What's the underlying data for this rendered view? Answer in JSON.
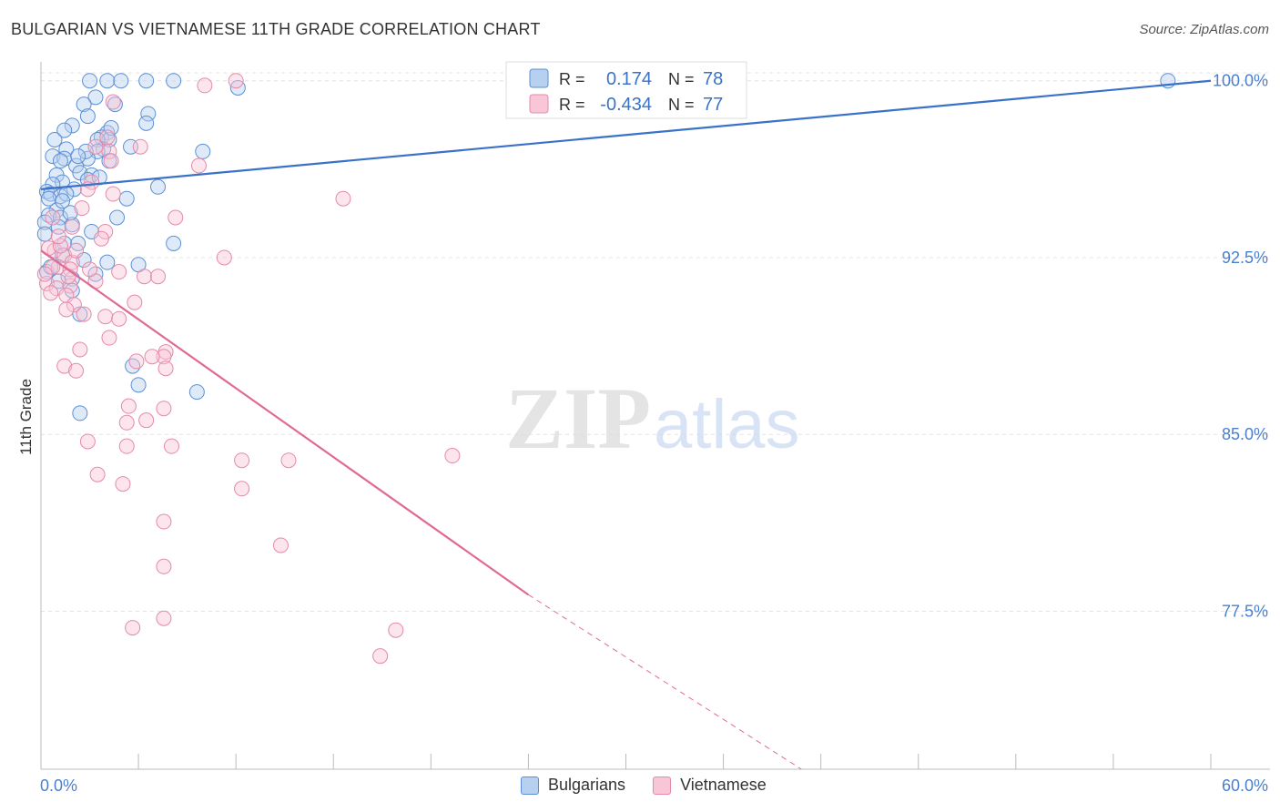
{
  "title": "BULGARIAN VS VIETNAMESE 11TH GRADE CORRELATION CHART",
  "source": "Source: ZipAtlas.com",
  "watermark": {
    "zip": "ZIP",
    "atlas": "atlas"
  },
  "colors": {
    "blue": "#3a72c9",
    "blue_fill": "#b7d0f0",
    "pink": "#e06a96",
    "pink_fill": "#f8c6d6",
    "axis_label": "#4a7fd0",
    "grid": "#e4e4e4"
  },
  "chart_data": {
    "type": "scatter",
    "ylabel": "11th Grade",
    "xlim": [
      0,
      60
    ],
    "ylim": [
      70.8,
      100.8
    ],
    "x_tick_labels": [
      "0.0%",
      "60.0%"
    ],
    "y_ticks": [
      77.5,
      85.0,
      92.5,
      100.0
    ],
    "y_tick_labels": [
      "77.5%",
      "85.0%",
      "92.5%",
      "100.0%"
    ],
    "legend": {
      "rows": [
        {
          "r_label": "R =",
          "r_value": "0.174",
          "n_label": "N =",
          "n_value": "78"
        },
        {
          "r_label": "R =",
          "r_value": "-0.434",
          "n_label": "N =",
          "n_value": "77"
        }
      ]
    },
    "series": [
      {
        "name": "Bulgarians",
        "color": "#5b8fd6",
        "trend": {
          "x0": 0,
          "y0": 95.4,
          "x1": 60,
          "y1": 100.0
        },
        "points": [
          [
            2.5,
            100
          ],
          [
            3.4,
            100
          ],
          [
            4.1,
            100
          ],
          [
            6.8,
            100
          ],
          [
            5.4,
            100
          ],
          [
            10.1,
            99.7
          ],
          [
            57.8,
            100
          ],
          [
            2.8,
            99.3
          ],
          [
            2.2,
            99
          ],
          [
            3.8,
            99
          ],
          [
            5.5,
            98.6
          ],
          [
            2.4,
            98.5
          ],
          [
            5.4,
            98.2
          ],
          [
            1.6,
            98.1
          ],
          [
            1.2,
            97.9
          ],
          [
            3.4,
            97.8
          ],
          [
            3.1,
            97.6
          ],
          [
            3.5,
            97.5
          ],
          [
            2.9,
            97.5
          ],
          [
            3.2,
            97.1
          ],
          [
            1.3,
            97.1
          ],
          [
            2.9,
            97
          ],
          [
            8.3,
            97
          ],
          [
            0.6,
            96.8
          ],
          [
            1.2,
            96.7
          ],
          [
            1.0,
            96.6
          ],
          [
            2.4,
            96.7
          ],
          [
            3.5,
            96.6
          ],
          [
            1.8,
            96.4
          ],
          [
            2.0,
            96.1
          ],
          [
            0.8,
            96.0
          ],
          [
            2.6,
            96.0
          ],
          [
            2.4,
            95.8
          ],
          [
            1.1,
            95.7
          ],
          [
            0.6,
            95.6
          ],
          [
            6.0,
            95.5
          ],
          [
            1.7,
            95.4
          ],
          [
            0.3,
            95.3
          ],
          [
            0.5,
            95.2
          ],
          [
            1.0,
            95.1
          ],
          [
            1.3,
            95.2
          ],
          [
            0.4,
            95.0
          ],
          [
            4.4,
            95.0
          ],
          [
            0.8,
            94.5
          ],
          [
            0.4,
            94.3
          ],
          [
            1.0,
            94.2
          ],
          [
            3.9,
            94.2
          ],
          [
            0.2,
            94.0
          ],
          [
            0.9,
            93.8
          ],
          [
            1.6,
            93.9
          ],
          [
            1.2,
            93.1
          ],
          [
            1.9,
            93.1
          ],
          [
            6.8,
            93.1
          ],
          [
            3.4,
            92.3
          ],
          [
            5.0,
            92.2
          ],
          [
            2.8,
            91.8
          ],
          [
            1.6,
            91.6
          ],
          [
            1.6,
            91.1
          ],
          [
            2.0,
            90.1
          ],
          [
            4.7,
            87.9
          ],
          [
            5.0,
            87.1
          ],
          [
            8.0,
            86.8
          ],
          [
            2.0,
            85.9
          ],
          [
            0.3,
            91.9
          ],
          [
            1.1,
            92.6
          ],
          [
            2.2,
            92.4
          ],
          [
            0.5,
            92.1
          ],
          [
            0.9,
            91.5
          ],
          [
            0.2,
            93.5
          ],
          [
            1.5,
            94.4
          ],
          [
            3.0,
            95.9
          ],
          [
            2.3,
            97.0
          ],
          [
            0.7,
            97.5
          ],
          [
            1.9,
            96.8
          ],
          [
            4.6,
            97.2
          ],
          [
            3.6,
            98.0
          ],
          [
            1.1,
            94.9
          ],
          [
            2.6,
            93.6
          ]
        ]
      },
      {
        "name": "Vietnamese",
        "color": "#e58aa8",
        "trend": {
          "x0": 0,
          "y0": 92.8,
          "x1": 25,
          "y1": 78.2
        },
        "trend_dashed": {
          "x0": 25,
          "y0": 78.2,
          "x1": 39,
          "y1": 70.8
        },
        "points": [
          [
            10.0,
            100
          ],
          [
            8.4,
            99.8
          ],
          [
            3.7,
            99.1
          ],
          [
            3.4,
            97.6
          ],
          [
            5.1,
            97.2
          ],
          [
            3.5,
            97.0
          ],
          [
            2.8,
            97.2
          ],
          [
            8.1,
            96.4
          ],
          [
            2.6,
            95.7
          ],
          [
            3.6,
            96.6
          ],
          [
            2.4,
            95.4
          ],
          [
            3.7,
            95.2
          ],
          [
            15.5,
            95.0
          ],
          [
            6.9,
            94.2
          ],
          [
            0.6,
            94.2
          ],
          [
            3.3,
            93.6
          ],
          [
            1.6,
            93.8
          ],
          [
            3.1,
            93.3
          ],
          [
            0.7,
            92.8
          ],
          [
            9.4,
            92.5
          ],
          [
            1.2,
            92.6
          ],
          [
            1.6,
            92.3
          ],
          [
            0.9,
            92.1
          ],
          [
            0.6,
            92.1
          ],
          [
            1.5,
            92.0
          ],
          [
            4.0,
            91.9
          ],
          [
            5.3,
            91.7
          ],
          [
            6.0,
            91.7
          ],
          [
            0.3,
            91.4
          ],
          [
            0.8,
            91.2
          ],
          [
            1.5,
            91.3
          ],
          [
            2.8,
            91.5
          ],
          [
            1.3,
            90.9
          ],
          [
            4.8,
            90.6
          ],
          [
            1.7,
            90.5
          ],
          [
            1.3,
            90.3
          ],
          [
            3.3,
            90.0
          ],
          [
            4.0,
            89.9
          ],
          [
            2.2,
            90.1
          ],
          [
            3.5,
            89.1
          ],
          [
            2.0,
            88.6
          ],
          [
            6.4,
            88.5
          ],
          [
            6.3,
            88.3
          ],
          [
            4.9,
            88.1
          ],
          [
            5.7,
            88.3
          ],
          [
            1.2,
            87.9
          ],
          [
            1.8,
            87.7
          ],
          [
            6.4,
            87.8
          ],
          [
            4.5,
            86.2
          ],
          [
            6.3,
            86.1
          ],
          [
            5.4,
            85.6
          ],
          [
            4.4,
            85.5
          ],
          [
            2.4,
            84.7
          ],
          [
            4.4,
            84.5
          ],
          [
            6.7,
            84.5
          ],
          [
            10.3,
            83.9
          ],
          [
            12.7,
            83.9
          ],
          [
            21.1,
            84.1
          ],
          [
            2.9,
            83.3
          ],
          [
            4.2,
            82.9
          ],
          [
            10.3,
            82.7
          ],
          [
            6.3,
            81.3
          ],
          [
            12.3,
            80.3
          ],
          [
            6.3,
            79.4
          ],
          [
            6.3,
            77.2
          ],
          [
            4.7,
            76.8
          ],
          [
            18.2,
            76.7
          ],
          [
            17.4,
            75.6
          ],
          [
            0.4,
            92.9
          ],
          [
            1.0,
            93.0
          ],
          [
            0.2,
            91.8
          ],
          [
            2.1,
            94.6
          ],
          [
            0.5,
            91.0
          ],
          [
            1.8,
            92.8
          ],
          [
            0.9,
            93.4
          ],
          [
            2.5,
            92.0
          ],
          [
            1.4,
            91.7
          ]
        ]
      }
    ]
  }
}
